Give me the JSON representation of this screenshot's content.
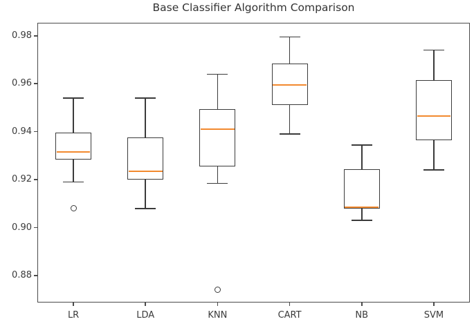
{
  "figure": {
    "title": "Base Classifier Algorithm Comparison"
  },
  "chart_data": {
    "type": "boxplot",
    "title": "Base Classifier Algorithm Comparison",
    "categories": [
      "LR",
      "LDA",
      "KNN",
      "CART",
      "NB",
      "SVM"
    ],
    "series": [
      {
        "name": "LR",
        "whisker_low": 0.919,
        "q1": 0.9285,
        "median": 0.9315,
        "q3": 0.9395,
        "whisker_high": 0.954,
        "outliers": [
          0.908
        ]
      },
      {
        "name": "LDA",
        "whisker_low": 0.908,
        "q1": 0.92,
        "median": 0.9235,
        "q3": 0.9375,
        "whisker_high": 0.954,
        "outliers": []
      },
      {
        "name": "KNN",
        "whisker_low": 0.9185,
        "q1": 0.9255,
        "median": 0.941,
        "q3": 0.9495,
        "whisker_high": 0.964,
        "outliers": [
          0.874
        ]
      },
      {
        "name": "CART",
        "whisker_low": 0.939,
        "q1": 0.951,
        "median": 0.9595,
        "q3": 0.9685,
        "whisker_high": 0.9795,
        "outliers": []
      },
      {
        "name": "NB",
        "whisker_low": 0.903,
        "q1": 0.908,
        "median": 0.9085,
        "q3": 0.9245,
        "whisker_high": 0.9345,
        "outliers": []
      },
      {
        "name": "SVM",
        "whisker_low": 0.924,
        "q1": 0.9365,
        "median": 0.9465,
        "q3": 0.9615,
        "whisker_high": 0.974,
        "outliers": []
      }
    ],
    "xlabel": "",
    "ylabel": "",
    "ylim": [
      0.8688,
      0.9854
    ],
    "yticks": [
      0.88,
      0.9,
      0.92,
      0.94,
      0.96,
      0.98
    ],
    "ytick_labels": [
      "0.88",
      "0.90",
      "0.92",
      "0.94",
      "0.96",
      "0.98"
    ],
    "grid": false,
    "legend": "none",
    "colors": {
      "line": "#3a3a3a",
      "median": "#f2892e",
      "background": "#ffffff"
    }
  }
}
